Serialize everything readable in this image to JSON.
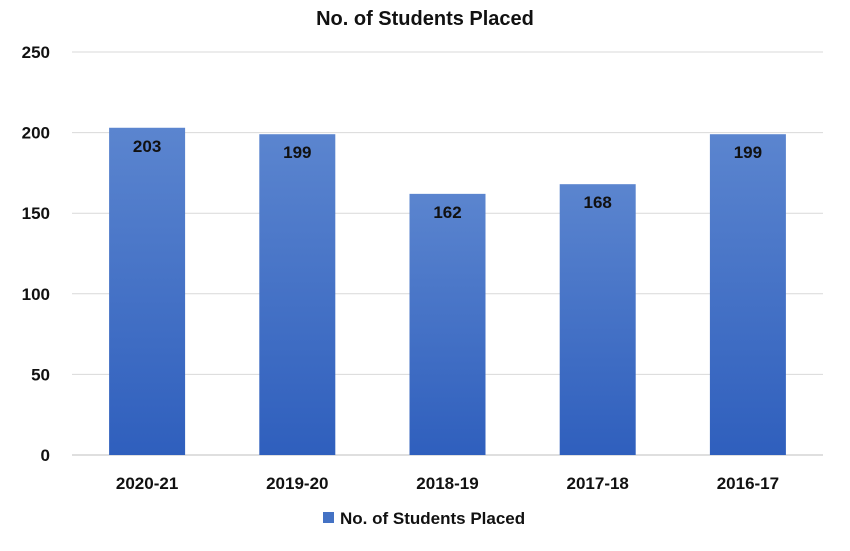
{
  "chart_data": {
    "type": "bar",
    "title": "No. of Students Placed",
    "categories": [
      "2020-21",
      "2019-20",
      "2018-19",
      "2017-18",
      "2016-17"
    ],
    "series": [
      {
        "name": "No. of Students Placed",
        "values": [
          203,
          199,
          162,
          168,
          199
        ]
      }
    ],
    "yticks": [
      0,
      50,
      100,
      150,
      200,
      250
    ],
    "ylim": [
      0,
      250
    ],
    "xlabel": "",
    "ylabel": "",
    "grid": true,
    "legend": "bottom-center",
    "bar_color_top": "#5b85cf",
    "bar_color_bottom": "#2f5fbd"
  }
}
